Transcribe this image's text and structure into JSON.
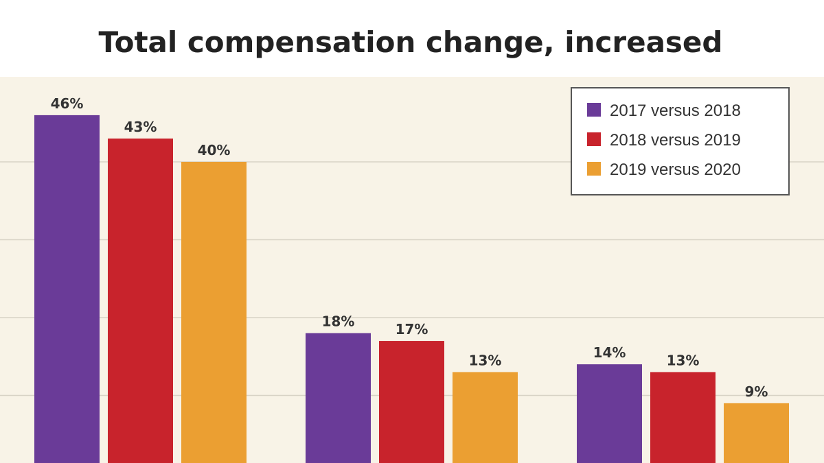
{
  "chart_data": {
    "type": "bar",
    "title": "Total compensation change, increased",
    "categories": [
      "",
      "",
      ""
    ],
    "series": [
      {
        "name": "2017 versus 2018",
        "color": "#6a3b98",
        "values": [
          46,
          18,
          14
        ]
      },
      {
        "name": "2018 versus 2019",
        "color": "#c8232c",
        "values": [
          43,
          17,
          13
        ]
      },
      {
        "name": "2019 versus 2020",
        "color": "#eb9f32",
        "values": [
          40,
          13,
          9
        ]
      }
    ],
    "value_suffix": "%",
    "ylim": [
      0,
      50
    ],
    "grid": true,
    "legend_position": "top-right",
    "xlabel": "",
    "ylabel": ""
  },
  "colors": {
    "plot_background": "#f8f3e7",
    "gridline": "#d8d3c6",
    "legend_border": "#555555"
  }
}
